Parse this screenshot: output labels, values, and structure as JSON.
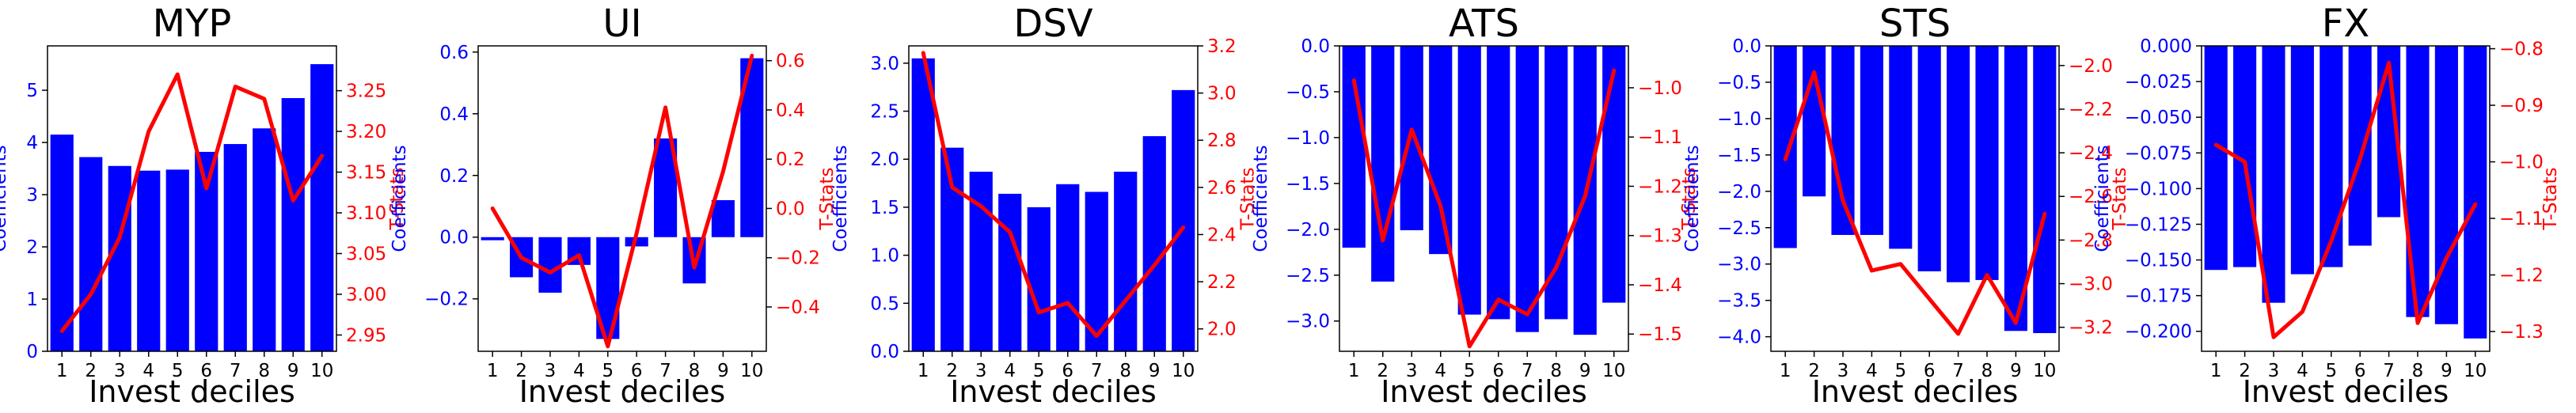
{
  "chart_data": [
    {
      "type": "bar",
      "title": "MYP",
      "xlabel": "Invest deciles",
      "ylabel": "Coefficients",
      "ylabel_right": "T-Stats",
      "categories": [
        "1",
        "2",
        "3",
        "4",
        "5",
        "6",
        "7",
        "8",
        "9",
        "10"
      ],
      "series": [
        {
          "axis": "left",
          "kind": "bar",
          "color": "#0000ff",
          "values": [
            4.15,
            3.72,
            3.55,
            3.46,
            3.48,
            3.82,
            3.97,
            4.27,
            4.85,
            5.5
          ]
        },
        {
          "axis": "right",
          "kind": "line",
          "color": "#ff0000",
          "values": [
            2.955,
            3.0,
            3.07,
            3.2,
            3.27,
            3.13,
            3.255,
            3.24,
            3.115,
            3.17
          ]
        }
      ],
      "ylim": [
        0,
        5.85
      ],
      "ylim_right": [
        2.93,
        3.305
      ],
      "yticks": [
        0,
        1,
        2,
        3,
        4,
        5
      ],
      "yticks_right": [
        2.95,
        3.0,
        3.05,
        3.1,
        3.15,
        3.2,
        3.25
      ],
      "ytick_labels": [
        "0",
        "1",
        "2",
        "3",
        "4",
        "5"
      ],
      "ytick_labels_right": [
        "2.95",
        "3.00",
        "3.05",
        "3.10",
        "3.15",
        "3.20",
        "3.25"
      ]
    },
    {
      "type": "bar",
      "title": "UI",
      "xlabel": "Invest deciles",
      "ylabel": "Coefficients",
      "ylabel_right": "T-Stats",
      "categories": [
        "1",
        "2",
        "3",
        "4",
        "5",
        "6",
        "7",
        "8",
        "9",
        "10"
      ],
      "series": [
        {
          "axis": "left",
          "kind": "bar",
          "color": "#0000ff",
          "values": [
            -0.01,
            -0.13,
            -0.18,
            -0.09,
            -0.33,
            -0.03,
            0.32,
            -0.15,
            0.12,
            0.58
          ]
        },
        {
          "axis": "right",
          "kind": "line",
          "color": "#ff0000",
          "values": [
            0.0,
            -0.2,
            -0.26,
            -0.19,
            -0.56,
            -0.1,
            0.41,
            -0.24,
            0.15,
            0.62
          ]
        }
      ],
      "ylim": [
        -0.37,
        0.62
      ],
      "ylim_right": [
        -0.58,
        0.66
      ],
      "yticks": [
        -0.2,
        0.0,
        0.2,
        0.4,
        0.6
      ],
      "yticks_right": [
        -0.4,
        -0.2,
        0.0,
        0.2,
        0.4,
        0.6
      ],
      "ytick_labels": [
        "−0.2",
        "0.0",
        "0.2",
        "0.4",
        "0.6"
      ],
      "ytick_labels_right": [
        "−0.4",
        "−0.2",
        "0.0",
        "0.2",
        "0.4",
        "0.6"
      ]
    },
    {
      "type": "bar",
      "title": "DSV",
      "xlabel": "Invest deciles",
      "ylabel": "Coefficients",
      "ylabel_right": "T-Stats",
      "categories": [
        "1",
        "2",
        "3",
        "4",
        "5",
        "6",
        "7",
        "8",
        "9",
        "10"
      ],
      "series": [
        {
          "axis": "left",
          "kind": "bar",
          "color": "#0000ff",
          "values": [
            3.05,
            2.12,
            1.87,
            1.64,
            1.5,
            1.74,
            1.66,
            1.87,
            2.24,
            2.72
          ]
        },
        {
          "axis": "right",
          "kind": "line",
          "color": "#ff0000",
          "values": [
            3.17,
            2.6,
            2.52,
            2.41,
            2.07,
            2.11,
            1.97,
            2.12,
            2.27,
            2.43
          ]
        }
      ],
      "ylim": [
        0,
        3.18
      ],
      "ylim_right": [
        1.905,
        3.2
      ],
      "yticks": [
        0.0,
        0.5,
        1.0,
        1.5,
        2.0,
        2.5,
        3.0
      ],
      "yticks_right": [
        2.0,
        2.2,
        2.4,
        2.6,
        2.8,
        3.0,
        3.2
      ],
      "ytick_labels": [
        "0.0",
        "0.5",
        "1.0",
        "1.5",
        "2.0",
        "2.5",
        "3.0"
      ],
      "ytick_labels_right": [
        "2.0",
        "2.2",
        "2.4",
        "2.6",
        "2.8",
        "3.0",
        "3.2"
      ]
    },
    {
      "type": "bar",
      "title": "ATS",
      "xlabel": "Invest deciles",
      "ylabel": "Coefficients",
      "ylabel_right": "T-Stats",
      "categories": [
        "1",
        "2",
        "3",
        "4",
        "5",
        "6",
        "7",
        "8",
        "9",
        "10"
      ],
      "series": [
        {
          "axis": "left",
          "kind": "bar",
          "color": "#0000ff",
          "values": [
            -2.2,
            -2.57,
            -2.01,
            -2.27,
            -2.93,
            -2.98,
            -3.12,
            -2.98,
            -3.15,
            -2.8
          ]
        },
        {
          "axis": "right",
          "kind": "line",
          "color": "#ff0000",
          "values": [
            -0.985,
            -1.31,
            -1.085,
            -1.24,
            -1.525,
            -1.43,
            -1.46,
            -1.365,
            -1.22,
            -0.965
          ]
        }
      ],
      "ylim": [
        -3.33,
        0.0
      ],
      "ylim_right": [
        -1.535,
        -0.915
      ],
      "yticks": [
        -3.0,
        -2.5,
        -2.0,
        -1.5,
        -1.0,
        -0.5,
        0.0
      ],
      "yticks_right": [
        -1.5,
        -1.4,
        -1.3,
        -1.2,
        -1.1,
        -1.0
      ],
      "ytick_labels": [
        "−3.0",
        "−2.5",
        "−2.0",
        "−1.5",
        "−1.0",
        "−0.5",
        "0.0"
      ],
      "ytick_labels_right": [
        "−1.5",
        "−1.4",
        "−1.3",
        "−1.2",
        "−1.1",
        "−1.0"
      ]
    },
    {
      "type": "bar",
      "title": "STS",
      "xlabel": "Invest deciles",
      "ylabel": "Coefficients",
      "ylabel_right": "T-Stats",
      "categories": [
        "1",
        "2",
        "3",
        "4",
        "5",
        "6",
        "7",
        "8",
        "9",
        "10"
      ],
      "series": [
        {
          "axis": "left",
          "kind": "bar",
          "color": "#0000ff",
          "values": [
            -2.78,
            -2.07,
            -2.6,
            -2.6,
            -2.79,
            -3.1,
            -3.25,
            -3.22,
            -3.92,
            -3.95
          ]
        },
        {
          "axis": "right",
          "kind": "line",
          "color": "#ff0000",
          "values": [
            -2.43,
            -2.03,
            -2.62,
            -2.94,
            -2.91,
            -3.07,
            -3.23,
            -2.96,
            -3.18,
            -2.68
          ]
        }
      ],
      "ylim": [
        -4.2,
        0.0
      ],
      "ylim_right": [
        -3.31,
        -1.91
      ],
      "yticks": [
        -4.0,
        -3.5,
        -3.0,
        -2.5,
        -2.0,
        -1.5,
        -1.0,
        -0.5,
        0.0
      ],
      "yticks_right": [
        -3.2,
        -3.0,
        -2.8,
        -2.6,
        -2.4,
        -2.2,
        -2.0
      ],
      "ytick_labels": [
        "−4.0",
        "−3.5",
        "−3.0",
        "−2.5",
        "−2.0",
        "−1.5",
        "−1.0",
        "−0.5",
        "0.0"
      ],
      "ytick_labels_right": [
        "−3.2",
        "−3.0",
        "−2.8",
        "−2.6",
        "−2.4",
        "−2.2",
        "−2.0"
      ]
    },
    {
      "type": "bar",
      "title": "FX",
      "xlabel": "Invest deciles",
      "ylabel": "Coefficients",
      "ylabel_right": "T-Stats",
      "categories": [
        "1",
        "2",
        "3",
        "4",
        "5",
        "6",
        "7",
        "8",
        "9",
        "10"
      ],
      "series": [
        {
          "axis": "left",
          "kind": "bar",
          "color": "#0000ff",
          "values": [
            -0.157,
            -0.155,
            -0.18,
            -0.16,
            -0.155,
            -0.14,
            -0.12,
            -0.19,
            -0.195,
            -0.205
          ]
        },
        {
          "axis": "right",
          "kind": "line",
          "color": "#ff0000",
          "values": [
            -0.97,
            -1.0,
            -1.31,
            -1.265,
            -1.14,
            -0.995,
            -0.825,
            -1.285,
            -1.17,
            -1.075
          ]
        }
      ],
      "ylim": [
        -0.214,
        0.0
      ],
      "ylim_right": [
        -1.335,
        -0.795
      ],
      "yticks": [
        -0.2,
        -0.175,
        -0.15,
        -0.125,
        -0.1,
        -0.075,
        -0.05,
        -0.025,
        0.0
      ],
      "yticks_right": [
        -1.3,
        -1.2,
        -1.1,
        -1.0,
        -0.9,
        -0.8
      ],
      "ytick_labels": [
        "−0.200",
        "−0.175",
        "−0.150",
        "−0.125",
        "−0.100",
        "−0.075",
        "−0.050",
        "−0.025",
        "0.000"
      ],
      "ytick_labels_right": [
        "−1.3",
        "−1.2",
        "−1.1",
        "−1.0",
        "−0.9",
        "−0.8"
      ]
    }
  ]
}
